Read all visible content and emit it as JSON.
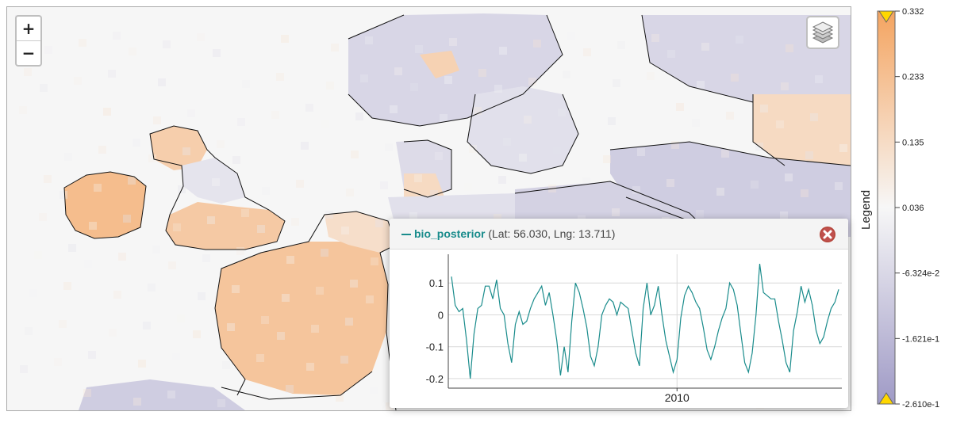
{
  "zoom": {
    "in_label": "+",
    "out_label": "−"
  },
  "icons": {
    "layers": "layers-icon",
    "close": "close-icon"
  },
  "popup": {
    "series_name": "bio_posterior",
    "coords": "(Lat: 56.030, Lng: 13.711)",
    "line_color": "#1a8c8c"
  },
  "chart_data": {
    "type": "line",
    "title": "",
    "xlabel": "",
    "ylabel": "",
    "ylim": [
      -0.23,
      0.19
    ],
    "y_ticks": [
      0.1,
      0,
      -0.1,
      -0.2
    ],
    "y_tick_labels": [
      "0.1",
      "0",
      "-0.1",
      "-0.2"
    ],
    "x_tick_labels": [
      "2010"
    ],
    "x_tick_positions": [
      60
    ],
    "grid": true,
    "series": [
      {
        "values": [
          0.12,
          0.03,
          0.01,
          0.02,
          -0.08,
          -0.2,
          -0.06,
          0.02,
          0.03,
          0.09,
          0.09,
          0.05,
          0.11,
          0.02,
          0.0,
          -0.09,
          -0.15,
          -0.03,
          0.01,
          -0.03,
          -0.02,
          0.02,
          0.05,
          0.07,
          0.09,
          0.03,
          0.07,
          0.0,
          -0.08,
          -0.19,
          -0.1,
          -0.18,
          -0.02,
          0.1,
          0.07,
          0.02,
          -0.04,
          -0.13,
          -0.16,
          -0.1,
          0.0,
          0.03,
          0.05,
          0.04,
          0.0,
          0.04,
          0.03,
          0.02,
          -0.05,
          -0.12,
          -0.16,
          0.02,
          0.1,
          0.0,
          0.03,
          0.09,
          0.0,
          -0.08,
          -0.13,
          -0.18,
          -0.14,
          -0.01,
          0.06,
          0.09,
          0.07,
          0.04,
          0.02,
          -0.04,
          -0.11,
          -0.14,
          -0.1,
          -0.05,
          -0.01,
          0.02,
          0.1,
          0.08,
          0.03,
          -0.06,
          -0.15,
          -0.18,
          -0.12,
          0.0,
          0.16,
          0.07,
          0.06,
          0.05,
          0.05,
          -0.02,
          -0.08,
          -0.15,
          -0.18,
          -0.05,
          0.01,
          0.09,
          0.04,
          0.08,
          0.03,
          -0.05,
          -0.09,
          -0.07,
          -0.02,
          0.02,
          0.04,
          0.08
        ]
      }
    ]
  },
  "legend": {
    "title": "Legend",
    "labels": [
      "0.332",
      "0.233",
      "0.135",
      "0.036",
      "-6.324e-2",
      "-1.621e-1",
      "-2.610e-1"
    ],
    "color_high": "#f4a460",
    "color_mid": "#f7f7f7",
    "color_low": "#9f9ac6",
    "arrow_color": "#ffd700"
  },
  "map_colors": {
    "orange": "#f4a460",
    "purple": "#9f9ac6",
    "background": "#f6f6f6",
    "coast": "#111111"
  }
}
